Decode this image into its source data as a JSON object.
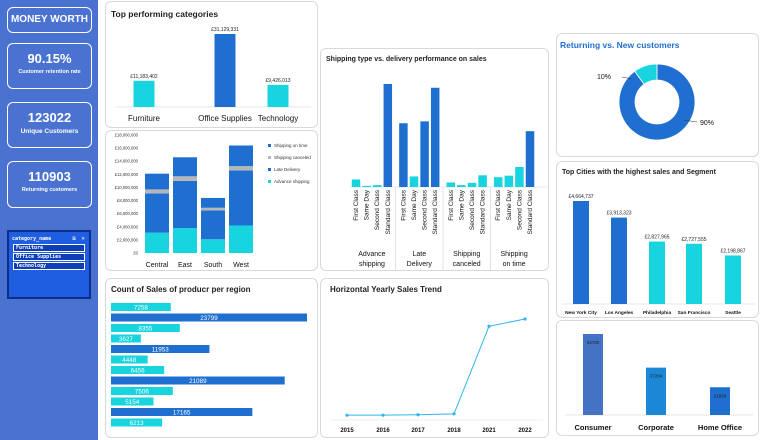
{
  "sidebar": {
    "brand": "MONEY WORTH",
    "kpis": [
      {
        "value": "90.15%",
        "label": "Customer retention rate"
      },
      {
        "value": "123022",
        "label": "Unique Customers"
      },
      {
        "value": "110903",
        "label": "Returning customers"
      }
    ],
    "slicer": {
      "title": "category_name",
      "controls": "≋ ✕",
      "items": [
        "Furniture",
        "Office Supplies",
        "Technology"
      ]
    }
  },
  "colors": {
    "dark_blue": "#1f6fd0",
    "cyan": "#17d4df",
    "gray": "#b7b7b7",
    "sidebar": "#4a72d0"
  },
  "top_categories": {
    "title": "Top performing categories",
    "chart_data": {
      "type": "bar",
      "categories": [
        "Furniture",
        "Office Supplies",
        "Technology"
      ],
      "values": [
        11183402,
        31129331,
        9426013
      ],
      "value_labels": [
        "£11,183,402",
        "£31,129,331",
        "£9,426,013"
      ]
    }
  },
  "region_stack": {
    "chart_data": {
      "type": "bar",
      "stacked": true,
      "categories": [
        "Central",
        "East",
        "South",
        "West"
      ],
      "ylim": [
        0,
        18000000
      ],
      "yticks": [
        "£0",
        "£2,000,000",
        "£4,000,000",
        "£6,000,000",
        "£8,000,000",
        "£10,000,000",
        "£12,000,000",
        "£14,000,000",
        "£16,000,000",
        "£18,000,000"
      ],
      "legend": [
        "Shipping on time",
        "Shipping canceled",
        "Late Delivery",
        "Advance shipping"
      ],
      "series": [
        {
          "name": "Advance shipping",
          "values": [
            3100000,
            3800000,
            2100000,
            4200000
          ]
        },
        {
          "name": "Late Delivery",
          "values": [
            6000000,
            7200000,
            4400000,
            8400000
          ]
        },
        {
          "name": "Shipping canceled",
          "values": [
            600000,
            700000,
            400000,
            650000
          ]
        },
        {
          "name": "Shipping on time",
          "values": [
            2400000,
            2900000,
            1500000,
            3150000
          ]
        }
      ]
    }
  },
  "shipping": {
    "title": "Shipping type vs. delivery performance on sales",
    "chart_data": {
      "type": "bar",
      "groups": [
        "Advance shipping",
        "Late Delivery",
        "Shipping canceled",
        "Shipping on time"
      ],
      "categories": [
        "First Class",
        "Same Day",
        "Second Class",
        "Standard Class"
      ],
      "values": [
        [
          2000000,
          300000,
          500000,
          27300000
        ],
        [
          16900000,
          2800000,
          17400000,
          26300000
        ],
        [
          1200000,
          500000,
          1100000,
          3100000
        ],
        [
          2600000,
          3000000,
          5300000,
          14800000
        ]
      ]
    }
  },
  "count_region": {
    "title": "Count of Sales of producr per region",
    "chart_data": {
      "type": "bar",
      "orientation": "horizontal",
      "values": [
        7258,
        23799,
        8355,
        3627,
        11953,
        4448,
        6456,
        21089,
        7506,
        5154,
        17165,
        6213
      ],
      "dark": [
        false,
        true,
        false,
        false,
        true,
        false,
        false,
        true,
        false,
        false,
        true,
        false
      ]
    }
  },
  "trend": {
    "title": "Horizontal Yearly Sales Trend",
    "chart_data": {
      "type": "line",
      "x": [
        "2015",
        "2016",
        "2017",
        "2018",
        "2021",
        "2022"
      ],
      "values": [
        400000,
        400000,
        500000,
        700000,
        20000000,
        21600000
      ]
    }
  },
  "returning": {
    "title": "Returning vs. New customers",
    "chart_data": {
      "type": "pie",
      "donut": true,
      "values": [
        90,
        10
      ],
      "labels": [
        "90%",
        "10%"
      ]
    }
  },
  "cities": {
    "title": "Top Cities with the highest sales and Segment",
    "chart_data": {
      "type": "bar",
      "categories": [
        "New York City",
        "Los Angeles",
        "Philadelphia",
        "San Francisco",
        "Seattle"
      ],
      "values": [
        4664737,
        3913323,
        2827965,
        2727555,
        2198867
      ],
      "value_labels": [
        "£4,664,737",
        "£3,913,323",
        "£2,827,965",
        "£2,727,555",
        "£2,198,867"
      ]
    }
  },
  "segments": {
    "chart_data": {
      "type": "bar",
      "categories": [
        "Consumer",
        "Corporate",
        "Home Office"
      ],
      "values": [
        63780,
        37284,
        21838
      ],
      "value_labels": [
        "63780",
        "37284",
        "21838"
      ]
    }
  }
}
